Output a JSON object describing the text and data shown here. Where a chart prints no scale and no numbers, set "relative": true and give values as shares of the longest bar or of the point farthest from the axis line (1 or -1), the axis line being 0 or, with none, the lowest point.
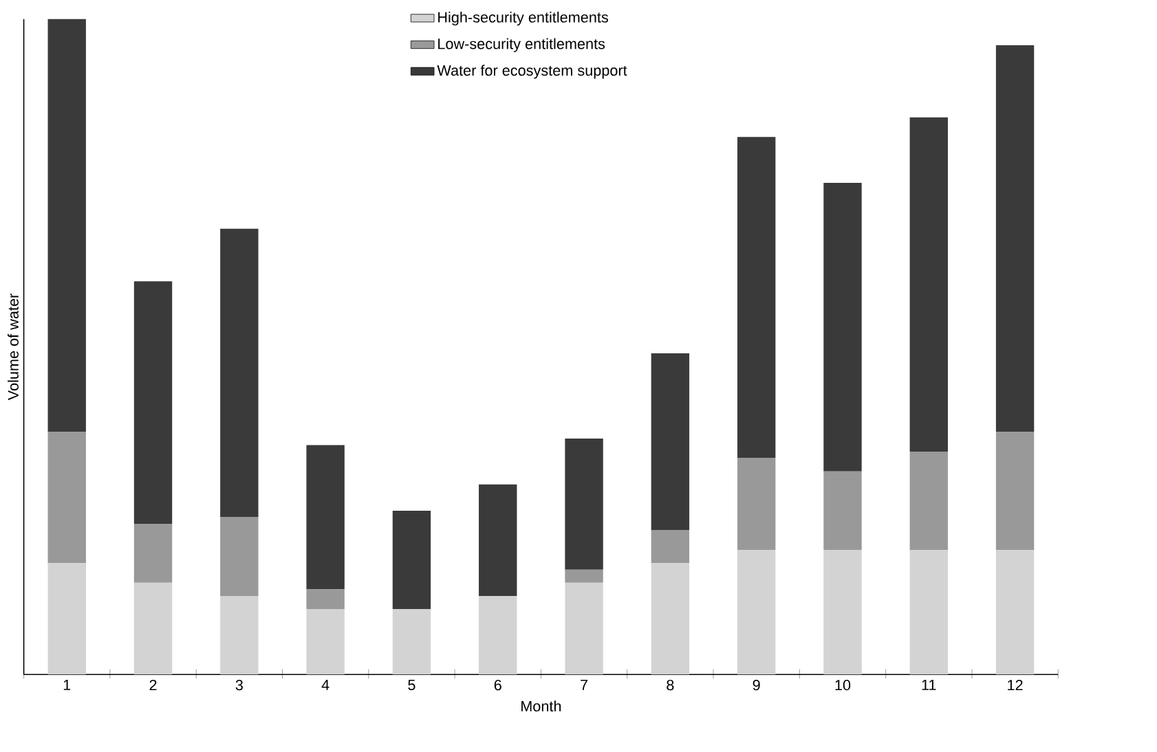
{
  "chart_data": {
    "type": "bar",
    "stacked": true,
    "relative": true,
    "xlabel": "Month",
    "ylabel": "Volume of water",
    "legend": "top",
    "categories": [
      "1",
      "2",
      "3",
      "4",
      "5",
      "6",
      "7",
      "8",
      "9",
      "10",
      "11",
      "12"
    ],
    "series": [
      {
        "name": "High-security entitlements",
        "color": "#d3d3d3",
        "values": [
          0.17,
          0.14,
          0.12,
          0.1,
          0.1,
          0.12,
          0.14,
          0.17,
          0.19,
          0.19,
          0.19,
          0.19
        ]
      },
      {
        "name": "Low-security entitlements",
        "color": "#999999",
        "values": [
          0.2,
          0.09,
          0.12,
          0.03,
          0,
          0,
          0.02,
          0.05,
          0.14,
          0.12,
          0.15,
          0.18
        ]
      },
      {
        "name": "Water for ecosystem support",
        "color": "#3a3a3a",
        "values": [
          0.63,
          0.37,
          0.44,
          0.22,
          0.15,
          0.17,
          0.2,
          0.27,
          0.49,
          0.44,
          0.51,
          0.59
        ]
      }
    ]
  }
}
